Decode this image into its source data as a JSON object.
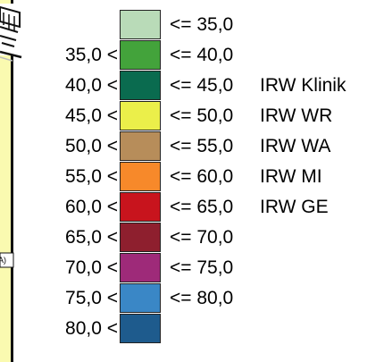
{
  "map_fragment": {
    "scale_label": "A)"
  },
  "legend": {
    "rows": [
      {
        "lower": "",
        "upper": "<= 35,0",
        "label": "",
        "color": "#b9dbb8"
      },
      {
        "lower": "35,0 <",
        "upper": "<= 40,0",
        "label": "",
        "color": "#43a33b"
      },
      {
        "lower": "40,0 <",
        "upper": "<= 45,0",
        "label": "IRW Klinik",
        "color": "#0a6b4f"
      },
      {
        "lower": "45,0 <",
        "upper": "<= 50,0",
        "label": "IRW WR",
        "color": "#ebef4a"
      },
      {
        "lower": "50,0 <",
        "upper": "<= 55,0",
        "label": "IRW WA",
        "color": "#b78d5a"
      },
      {
        "lower": "55,0 <",
        "upper": "<= 60,0",
        "label": "IRW MI",
        "color": "#f7892a"
      },
      {
        "lower": "60,0 <",
        "upper": "<= 65,0",
        "label": "IRW GE",
        "color": "#c8141d"
      },
      {
        "lower": "65,0 <",
        "upper": "<= 70,0",
        "label": "",
        "color": "#8e1f2e"
      },
      {
        "lower": "70,0 <",
        "upper": "<= 75,0",
        "label": "",
        "color": "#9e2a79"
      },
      {
        "lower": "75,0 <",
        "upper": "<= 80,0",
        "label": "",
        "color": "#3a87c6"
      },
      {
        "lower": "80,0 <",
        "upper": "",
        "label": "",
        "color": "#1e5b8d"
      }
    ]
  }
}
